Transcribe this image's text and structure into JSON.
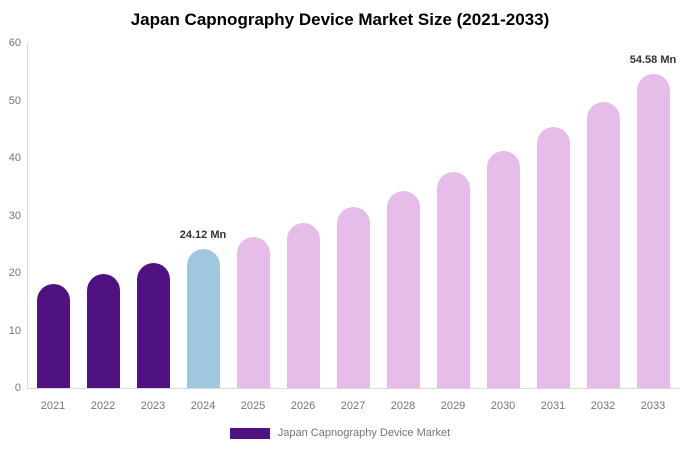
{
  "title": "Japan Capnography Device Market Size (2021-2033)",
  "colors": {
    "historical_bar": "#4F1280",
    "current_year_bar": "#9FC8DE",
    "forecast_bar": "#E5BDE8",
    "axis_line": "#d9d9d9",
    "axis_text": "#757575",
    "data_label_text": "#333333",
    "title_text": "#000000",
    "background": "#ffffff"
  },
  "chart_data": {
    "type": "bar",
    "title": "Japan Capnography Device Market Size (2021-2033)",
    "categories": [
      "2021",
      "2022",
      "2023",
      "2024",
      "2025",
      "2026",
      "2027",
      "2028",
      "2029",
      "2030",
      "2031",
      "2032",
      "2033"
    ],
    "values": [
      18.1,
      19.9,
      21.7,
      24.12,
      26.2,
      28.7,
      31.4,
      34.3,
      37.5,
      41.2,
      45.4,
      49.7,
      54.58
    ],
    "unit": "Mn",
    "bar_colors": [
      "#4F1280",
      "#4F1280",
      "#4F1280",
      "#9FC8DE",
      "#E5BDE8",
      "#E5BDE8",
      "#E5BDE8",
      "#E5BDE8",
      "#E5BDE8",
      "#E5BDE8",
      "#E5BDE8",
      "#E5BDE8",
      "#E5BDE8"
    ],
    "data_labels": [
      "",
      "",
      "",
      "24.12 Mn",
      "",
      "",
      "",
      "",
      "",
      "",
      "",
      "",
      "54.58 Mn"
    ],
    "xlabel": "",
    "ylabel": "",
    "ylim": [
      0,
      60
    ],
    "yticks": [
      0,
      10,
      20,
      30,
      40,
      50,
      60
    ],
    "grid": false,
    "legend_position": "bottom",
    "legend": [
      {
        "label": "Japan Capnography Device Market",
        "color": "#4F1280"
      }
    ]
  }
}
